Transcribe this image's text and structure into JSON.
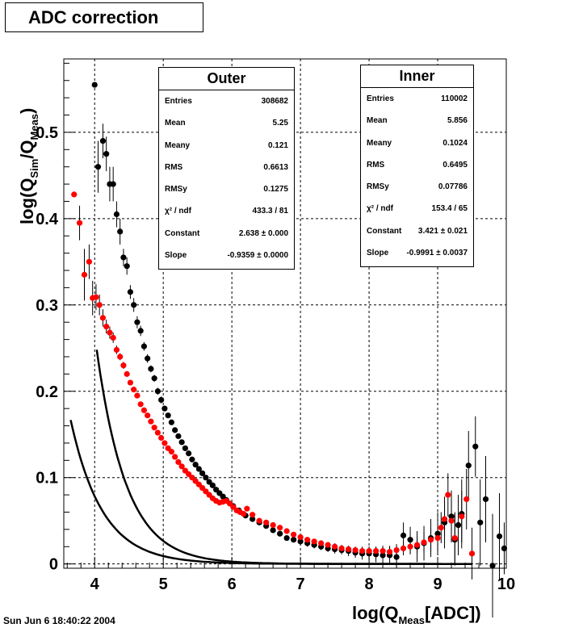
{
  "title": "ADC correction",
  "footer_date": "Sun Jun  6 18:40:22 2004",
  "axis": {
    "x_label": {
      "pre": "log(Q",
      "sub": "Meas",
      "post": "[ADC])"
    },
    "y_label": {
      "pre": "log(Q",
      "sub1": "Sim",
      "mid": "/Q",
      "sub2": "Meas",
      "post": ")"
    }
  },
  "stats_outer": {
    "title": "Outer",
    "rows": [
      {
        "label": "Entries",
        "value": "308682"
      },
      {
        "label": "Mean",
        "value": "5.25"
      },
      {
        "label": "Meany",
        "value": "0.121"
      },
      {
        "label": "RMS",
        "value": "0.6613"
      },
      {
        "label": "RMSy",
        "value": "0.1275"
      },
      {
        "label": "χ² / ndf",
        "value": "433.3 / 81"
      },
      {
        "label": "Constant",
        "value": "2.638 ± 0.000"
      },
      {
        "label": "Slope",
        "value": "-0.9359 ± 0.0000"
      }
    ]
  },
  "stats_inner": {
    "title": "Inner",
    "rows": [
      {
        "label": "Entries",
        "value": "110002"
      },
      {
        "label": "Mean",
        "value": "5.856"
      },
      {
        "label": "Meany",
        "value": "0.1024"
      },
      {
        "label": "RMS",
        "value": "0.6495"
      },
      {
        "label": "RMSy",
        "value": "0.07786"
      },
      {
        "label": "χ² / ndf",
        "value": "153.4 / 65"
      },
      {
        "label": "Constant",
        "value": "3.421 ± 0.021"
      },
      {
        "label": "Slope",
        "value": "-0.9991 ± 0.0037"
      }
    ]
  },
  "chart_data": {
    "type": "scatter",
    "title": "ADC correction",
    "xlabel": "log(Q_Meas[ADC])",
    "ylabel": "log(Q_Sim/Q_Meas)",
    "xlim": [
      3.55,
      10.0
    ],
    "ylim": [
      -0.005,
      0.585
    ],
    "xticks": [
      4,
      5,
      6,
      7,
      8,
      9,
      10
    ],
    "yticks": [
      0,
      0.1,
      0.2,
      0.3,
      0.4,
      0.5
    ],
    "grid": true,
    "series": [
      {
        "name": "Inner",
        "color": "#000000",
        "fit": {
          "constant": 3.421,
          "slope": -0.9991,
          "x_range": [
            4.03,
            9.5
          ]
        },
        "points": [
          [
            4.0,
            0.555,
            0
          ],
          [
            4.05,
            0.46,
            0.03
          ],
          [
            4.12,
            0.49,
            0.02
          ],
          [
            4.17,
            0.475,
            0.02
          ],
          [
            4.22,
            0.44,
            0.02
          ],
          [
            4.27,
            0.44,
            0.02
          ],
          [
            4.32,
            0.405,
            0.015
          ],
          [
            4.37,
            0.385,
            0.015
          ],
          [
            4.42,
            0.355,
            0.01
          ],
          [
            4.47,
            0.345,
            0.01
          ],
          [
            4.52,
            0.315,
            0.008
          ],
          [
            4.57,
            0.3,
            0.008
          ],
          [
            4.62,
            0.28,
            0.007
          ],
          [
            4.67,
            0.27,
            0.006
          ],
          [
            4.72,
            0.252,
            0.005
          ],
          [
            4.77,
            0.238,
            0.005
          ],
          [
            4.82,
            0.226,
            0.004
          ],
          [
            4.87,
            0.215,
            0.004
          ],
          [
            4.92,
            0.2,
            0.004
          ],
          [
            4.97,
            0.19,
            0.004
          ],
          [
            5.02,
            0.18,
            0.003
          ],
          [
            5.07,
            0.172,
            0.003
          ],
          [
            5.12,
            0.164,
            0.003
          ],
          [
            5.17,
            0.155,
            0.003
          ],
          [
            5.22,
            0.148,
            0.003
          ],
          [
            5.27,
            0.141,
            0.003
          ],
          [
            5.32,
            0.134,
            0.003
          ],
          [
            5.37,
            0.128,
            0.003
          ],
          [
            5.42,
            0.121,
            0.003
          ],
          [
            5.47,
            0.115,
            0.003
          ],
          [
            5.52,
            0.11,
            0.003
          ],
          [
            5.57,
            0.105,
            0.003
          ],
          [
            5.62,
            0.1,
            0.003
          ],
          [
            5.67,
            0.095,
            0.003
          ],
          [
            5.72,
            0.091,
            0.003
          ],
          [
            5.77,
            0.086,
            0.003
          ],
          [
            5.82,
            0.082,
            0.003
          ],
          [
            5.87,
            0.078,
            0.003
          ],
          [
            5.92,
            0.074,
            0.003
          ],
          [
            5.97,
            0.07,
            0.003
          ],
          [
            6.02,
            0.067,
            0.003
          ],
          [
            6.1,
            0.062,
            0.003
          ],
          [
            6.2,
            0.056,
            0.003
          ],
          [
            6.3,
            0.052,
            0.003
          ],
          [
            6.4,
            0.048,
            0.003
          ],
          [
            6.5,
            0.044,
            0.003
          ],
          [
            6.6,
            0.039,
            0.003
          ],
          [
            6.7,
            0.035,
            0.003
          ],
          [
            6.8,
            0.03,
            0.003
          ],
          [
            6.9,
            0.028,
            0.003
          ],
          [
            7.0,
            0.026,
            0.004
          ],
          [
            7.1,
            0.024,
            0.004
          ],
          [
            7.2,
            0.022,
            0.004
          ],
          [
            7.3,
            0.02,
            0.004
          ],
          [
            7.4,
            0.018,
            0.004
          ],
          [
            7.5,
            0.017,
            0.005
          ],
          [
            7.6,
            0.016,
            0.005
          ],
          [
            7.7,
            0.015,
            0.006
          ],
          [
            7.8,
            0.013,
            0.006
          ],
          [
            7.9,
            0.012,
            0.007
          ],
          [
            8.0,
            0.012,
            0.008
          ],
          [
            8.1,
            0.011,
            0.009
          ],
          [
            8.2,
            0.01,
            0.01
          ],
          [
            8.3,
            0.01,
            0.011
          ],
          [
            8.4,
            0.008,
            0.012
          ],
          [
            8.5,
            0.033,
            0.015
          ],
          [
            8.6,
            0.028,
            0.015
          ],
          [
            8.7,
            0.02,
            0.018
          ],
          [
            8.8,
            0.024,
            0.02
          ],
          [
            8.9,
            0.03,
            0.022
          ],
          [
            9.0,
            0.035,
            0.025
          ],
          [
            9.1,
            0.048,
            0.03
          ],
          [
            9.2,
            0.055,
            0.03
          ],
          [
            9.25,
            0.028,
            0.03
          ],
          [
            9.3,
            0.045,
            0.035
          ],
          [
            9.35,
            0.058,
            0.04
          ],
          [
            9.45,
            0.114,
            0.04
          ],
          [
            9.55,
            0.136,
            0.035
          ],
          [
            9.62,
            0.048,
            0.05
          ],
          [
            9.7,
            0.075,
            0.05
          ],
          [
            9.8,
            -0.002,
            0.06
          ],
          [
            9.9,
            0.032,
            0.05
          ],
          [
            9.97,
            0.018,
            0.03
          ]
        ]
      },
      {
        "name": "Outer",
        "color": "#ff0000",
        "fit": {
          "constant": 2.638,
          "slope": -0.9359,
          "x_range": [
            3.65,
            9.5
          ]
        },
        "points": [
          [
            3.7,
            0.428,
            0
          ],
          [
            3.78,
            0.395,
            0.02
          ],
          [
            3.85,
            0.335,
            0.03
          ],
          [
            3.92,
            0.35,
            0.02
          ],
          [
            3.97,
            0.308,
            0.02
          ],
          [
            4.02,
            0.309,
            0.015
          ],
          [
            4.07,
            0.3,
            0.012
          ],
          [
            4.12,
            0.285,
            0.01
          ],
          [
            4.17,
            0.275,
            0.008
          ],
          [
            4.22,
            0.268,
            0.007
          ],
          [
            4.27,
            0.262,
            0.006
          ],
          [
            4.32,
            0.248,
            0.005
          ],
          [
            4.37,
            0.24,
            0.004
          ],
          [
            4.42,
            0.23,
            0.004
          ],
          [
            4.47,
            0.22,
            0.003
          ],
          [
            4.52,
            0.21,
            0.003
          ],
          [
            4.57,
            0.202,
            0.003
          ],
          [
            4.62,
            0.195,
            0.003
          ],
          [
            4.67,
            0.185,
            0.003
          ],
          [
            4.72,
            0.178,
            0.003
          ],
          [
            4.77,
            0.172,
            0.003
          ],
          [
            4.82,
            0.165,
            0.003
          ],
          [
            4.87,
            0.158,
            0.003
          ],
          [
            4.92,
            0.152,
            0.003
          ],
          [
            4.97,
            0.146,
            0.003
          ],
          [
            5.02,
            0.14,
            0.003
          ],
          [
            5.07,
            0.134,
            0.003
          ],
          [
            5.12,
            0.13,
            0.003
          ],
          [
            5.17,
            0.124,
            0.003
          ],
          [
            5.22,
            0.118,
            0.003
          ],
          [
            5.27,
            0.113,
            0.003
          ],
          [
            5.32,
            0.108,
            0.003
          ],
          [
            5.37,
            0.104,
            0.003
          ],
          [
            5.42,
            0.1,
            0.003
          ],
          [
            5.47,
            0.096,
            0.003
          ],
          [
            5.52,
            0.092,
            0.003
          ],
          [
            5.57,
            0.088,
            0.003
          ],
          [
            5.62,
            0.084,
            0.003
          ],
          [
            5.67,
            0.08,
            0.003
          ],
          [
            5.72,
            0.076,
            0.003
          ],
          [
            5.77,
            0.073,
            0.003
          ],
          [
            5.82,
            0.071,
            0.003
          ],
          [
            5.87,
            0.072,
            0.003
          ],
          [
            5.92,
            0.073,
            0.003
          ],
          [
            5.97,
            0.07,
            0.003
          ],
          [
            6.02,
            0.066,
            0.003
          ],
          [
            6.07,
            0.062,
            0.003
          ],
          [
            6.12,
            0.06,
            0.003
          ],
          [
            6.17,
            0.058,
            0.003
          ],
          [
            6.22,
            0.064,
            0.003
          ],
          [
            6.3,
            0.057,
            0.003
          ],
          [
            6.4,
            0.05,
            0.003
          ],
          [
            6.5,
            0.048,
            0.003
          ],
          [
            6.6,
            0.045,
            0.003
          ],
          [
            6.7,
            0.042,
            0.003
          ],
          [
            6.8,
            0.038,
            0.003
          ],
          [
            6.9,
            0.034,
            0.003
          ],
          [
            7.0,
            0.031,
            0.003
          ],
          [
            7.1,
            0.028,
            0.003
          ],
          [
            7.2,
            0.026,
            0.003
          ],
          [
            7.3,
            0.024,
            0.003
          ],
          [
            7.4,
            0.022,
            0.003
          ],
          [
            7.5,
            0.02,
            0.004
          ],
          [
            7.6,
            0.018,
            0.004
          ],
          [
            7.7,
            0.017,
            0.004
          ],
          [
            7.8,
            0.016,
            0.004
          ],
          [
            7.9,
            0.015,
            0.005
          ],
          [
            8.0,
            0.015,
            0.005
          ],
          [
            8.1,
            0.015,
            0.005
          ],
          [
            8.2,
            0.015,
            0.006
          ],
          [
            8.3,
            0.014,
            0.006
          ],
          [
            8.4,
            0.016,
            0.007
          ],
          [
            8.5,
            0.018,
            0.008
          ],
          [
            8.6,
            0.02,
            0.009
          ],
          [
            8.7,
            0.022,
            0.01
          ],
          [
            8.8,
            0.025,
            0.012
          ],
          [
            8.9,
            0.028,
            0.014
          ],
          [
            9.0,
            0.03,
            0.015
          ],
          [
            9.05,
            0.042,
            0.018
          ],
          [
            9.1,
            0.052,
            0.02
          ],
          [
            9.15,
            0.08,
            0.025
          ],
          [
            9.2,
            0.05,
            0.025
          ],
          [
            9.25,
            0.03,
            0.03
          ],
          [
            9.35,
            0.055,
            0.03
          ],
          [
            9.42,
            0.075,
            0.035
          ],
          [
            9.5,
            0.012,
            0.03
          ]
        ]
      }
    ]
  }
}
